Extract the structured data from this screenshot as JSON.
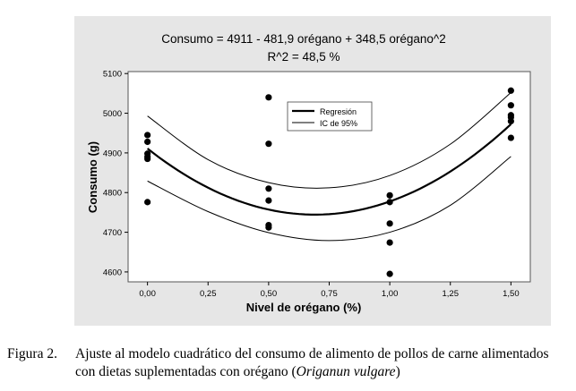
{
  "chart_data": {
    "type": "scatter",
    "title": "Consumo = 4911 - 481,9 orégano + 348,5 orégano^2",
    "subtitle": "R^2 = 48,5 %",
    "xlabel": "Nivel de orégano (%)",
    "ylabel": "Consumo (g)",
    "xlim": [
      -0.08,
      1.58
    ],
    "ylim": [
      4575,
      5105
    ],
    "x_ticks": [
      0,
      0.25,
      0.5,
      0.75,
      1.0,
      1.25,
      1.5
    ],
    "x_tick_labels": [
      "0,00",
      "0,25",
      "0,50",
      "0,75",
      "1,00",
      "1,25",
      "1,50"
    ],
    "y_ticks": [
      4600,
      4700,
      4800,
      4900,
      5000,
      5100
    ],
    "y_tick_labels": [
      "4600",
      "4700",
      "4800",
      "4900",
      "5000",
      "5100"
    ],
    "grid": false,
    "legend_position": "top-center",
    "legend": [
      {
        "label": "Regresión",
        "style": "thick"
      },
      {
        "label": "IC de 95%",
        "style": "thin"
      }
    ],
    "points": [
      {
        "x": 0,
        "y": 4945
      },
      {
        "x": 0,
        "y": 4928
      },
      {
        "x": 0,
        "y": 4898
      },
      {
        "x": 0,
        "y": 4890
      },
      {
        "x": 0,
        "y": 4885
      },
      {
        "x": 0,
        "y": 4776
      },
      {
        "x": 0.5,
        "y": 5040
      },
      {
        "x": 0.5,
        "y": 4923
      },
      {
        "x": 0.5,
        "y": 4810
      },
      {
        "x": 0.5,
        "y": 4780
      },
      {
        "x": 0.5,
        "y": 4718
      },
      {
        "x": 0.5,
        "y": 4712
      },
      {
        "x": 1.0,
        "y": 4793
      },
      {
        "x": 1.0,
        "y": 4776
      },
      {
        "x": 1.0,
        "y": 4722
      },
      {
        "x": 1.0,
        "y": 4674
      },
      {
        "x": 1.0,
        "y": 4595
      },
      {
        "x": 1.5,
        "y": 5057
      },
      {
        "x": 1.5,
        "y": 5020
      },
      {
        "x": 1.5,
        "y": 4995
      },
      {
        "x": 1.5,
        "y": 4990
      },
      {
        "x": 1.5,
        "y": 4980
      },
      {
        "x": 1.5,
        "y": 4938
      }
    ],
    "regression": {
      "intercept": 4911,
      "b1": -481.9,
      "b2": 348.5
    },
    "ci_upper": [
      {
        "x": 0,
        "y": 4993
      },
      {
        "x": 0.25,
        "y": 4883
      },
      {
        "x": 0.5,
        "y": 4825
      },
      {
        "x": 0.75,
        "y": 4812
      },
      {
        "x": 1.0,
        "y": 4843
      },
      {
        "x": 1.25,
        "y": 4922
      },
      {
        "x": 1.5,
        "y": 5052
      }
    ],
    "ci_lower": [
      {
        "x": 0,
        "y": 4829
      },
      {
        "x": 0.25,
        "y": 4752
      },
      {
        "x": 0.5,
        "y": 4699
      },
      {
        "x": 0.75,
        "y": 4679
      },
      {
        "x": 1.0,
        "y": 4700
      },
      {
        "x": 1.25,
        "y": 4768
      },
      {
        "x": 1.5,
        "y": 4891
      }
    ]
  },
  "caption": {
    "label": "Figura 2.",
    "line1": "Ajuste al modelo cuadrático del consumo de alimento de pollos de carne alimentados",
    "line2_prefix": "con dietas suplementadas con orégano (",
    "line2_italic": "Origanun vulgare",
    "line2_suffix": ")"
  }
}
